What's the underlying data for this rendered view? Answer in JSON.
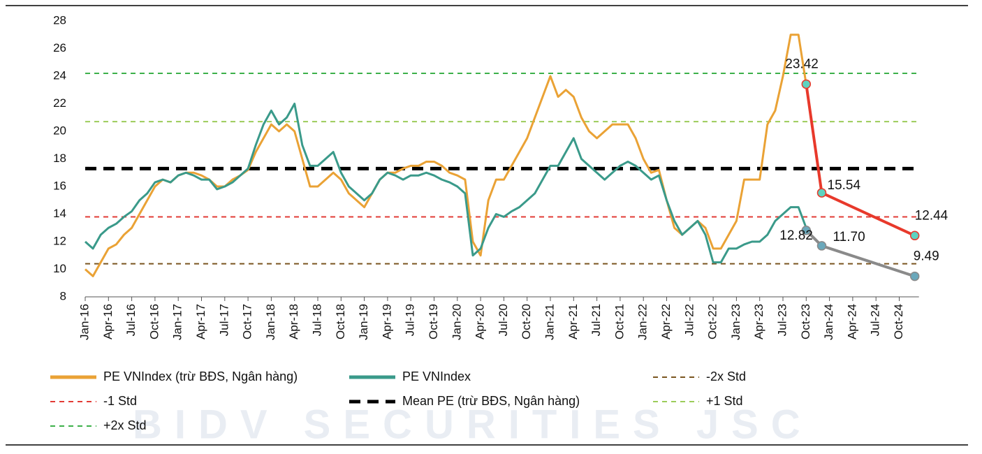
{
  "chart_data": {
    "type": "line",
    "watermark": "BIDV SECURITIES JSC",
    "categories": [
      "Jan-16",
      null,
      null,
      "Apr-16",
      null,
      null,
      "Jul-16",
      null,
      null,
      "Oct-16",
      null,
      null,
      "Jan-17",
      null,
      null,
      "Apr-17",
      null,
      null,
      "Jul-17",
      null,
      null,
      "Oct-17",
      null,
      null,
      "Jan-18",
      null,
      null,
      "Apr-18",
      null,
      null,
      "Jul-18",
      null,
      null,
      "Oct-18",
      null,
      null,
      "Jan-19",
      null,
      null,
      "Apr-19",
      null,
      null,
      "Jul-19",
      null,
      null,
      "Oct-19",
      null,
      null,
      "Jan-20",
      null,
      null,
      "Apr-20",
      null,
      null,
      "Jul-20",
      null,
      null,
      "Oct-20",
      null,
      null,
      "Jan-21",
      null,
      null,
      "Apr-21",
      null,
      null,
      "Jul-21",
      null,
      null,
      "Oct-21",
      null,
      null,
      "Jan-22",
      null,
      null,
      "Apr-22",
      null,
      null,
      "Jul-22",
      null,
      null,
      "Oct-22",
      null,
      null,
      "Jan-23",
      null,
      null,
      "Apr-23",
      null,
      null,
      "Jul-23",
      null,
      null,
      "Oct-23",
      null,
      null,
      "Jan-24",
      null,
      null,
      "Apr-24",
      null,
      null,
      "Jul-24",
      null,
      null,
      "Oct-24",
      null,
      null
    ],
    "ylim": [
      8,
      28
    ],
    "yticks": [
      8,
      10,
      12,
      14,
      16,
      18,
      20,
      22,
      24,
      26,
      28
    ],
    "series": [
      {
        "name": "PE VNIndex (trừ BĐS, Ngân hàng)",
        "color": "#eaa235",
        "values": [
          10,
          9.5,
          10.5,
          11.5,
          11.8,
          12.5,
          13,
          14,
          15,
          16,
          16.5,
          16.3,
          16.8,
          17,
          17,
          16.8,
          16.5,
          16,
          16,
          16.5,
          16.8,
          17.2,
          18.5,
          19.5,
          20.5,
          20,
          20.5,
          20,
          18,
          16,
          16,
          16.5,
          17,
          16.5,
          15.5,
          15,
          14.5,
          15.5,
          16.5,
          17,
          17,
          17.3,
          17.5,
          17.5,
          17.8,
          17.8,
          17.5,
          17,
          16.8,
          16.5,
          12,
          11,
          15,
          16.5,
          16.5,
          17.5,
          18.5,
          19.5,
          21,
          22.5,
          24,
          22.5,
          23,
          22.5,
          21,
          20,
          19.5,
          20,
          20.5,
          20.5,
          20.5,
          19.5,
          18,
          17,
          17.2,
          15,
          13,
          12.5,
          13,
          13.5,
          13,
          11.5,
          11.5,
          12.5,
          13.5,
          16.5,
          16.5,
          16.5,
          20.5,
          21.5,
          24,
          27,
          27,
          23.4,
          null,
          null,
          null,
          null,
          null,
          null,
          null,
          null,
          null,
          null,
          null,
          null,
          null,
          null
        ]
      },
      {
        "name": "PE VNIndex",
        "color": "#3a9a8a",
        "values": [
          12,
          11.5,
          12.5,
          13,
          13.3,
          13.8,
          14.2,
          15,
          15.5,
          16.3,
          16.5,
          16.3,
          16.8,
          17,
          16.8,
          16.5,
          16.5,
          15.8,
          16,
          16.3,
          16.8,
          17.3,
          19,
          20.5,
          21.5,
          20.5,
          21,
          22,
          19,
          17.5,
          17.5,
          18,
          18.5,
          17,
          16,
          15.5,
          15,
          15.5,
          16.5,
          17,
          16.8,
          16.5,
          16.8,
          16.8,
          17,
          16.8,
          16.5,
          16.3,
          16,
          15.5,
          11,
          11.5,
          13,
          14,
          13.8,
          14.2,
          14.5,
          15,
          15.5,
          16.5,
          17.5,
          17.5,
          18.5,
          19.5,
          18,
          17.5,
          17,
          16.5,
          17,
          17.5,
          17.8,
          17.5,
          17,
          16.5,
          16.8,
          15,
          13.5,
          12.5,
          13,
          13.5,
          12.5,
          10.5,
          10.5,
          11.5,
          11.5,
          11.8,
          12,
          12,
          12.5,
          13.5,
          14,
          14.5,
          14.5,
          13,
          null,
          null,
          null,
          null,
          null,
          null,
          null,
          null,
          null,
          null,
          null,
          null,
          null,
          null
        ]
      }
    ],
    "forecasts": [
      {
        "color": "#e8392b",
        "marker_color": "#5fd3c0",
        "values": [
          null,
          null,
          null,
          null,
          null,
          null,
          null,
          null,
          null,
          null,
          null,
          null,
          null,
          null,
          null,
          null,
          null,
          null,
          null,
          null,
          null,
          null,
          null,
          null,
          null,
          null,
          null,
          null,
          null,
          null,
          null,
          null,
          null,
          null,
          null,
          null,
          null,
          null,
          null,
          null,
          null,
          null,
          null,
          null,
          null,
          null,
          null,
          null,
          null,
          null,
          null,
          null,
          null,
          null,
          null,
          null,
          null,
          null,
          null,
          null,
          null,
          null,
          null,
          null,
          null,
          null,
          null,
          null,
          null,
          null,
          null,
          null,
          null,
          null,
          null,
          null,
          null,
          null,
          null,
          null,
          null,
          null,
          null,
          null,
          null,
          null,
          null,
          null,
          null,
          null,
          null,
          null,
          null,
          23.42,
          null,
          15.54,
          null,
          null,
          null,
          null,
          null,
          null,
          null,
          null,
          null,
          null,
          null,
          12.44
        ]
      },
      {
        "color": "#8a8a8a",
        "marker_color": "#6aa8bb",
        "values": [
          null,
          null,
          null,
          null,
          null,
          null,
          null,
          null,
          null,
          null,
          null,
          null,
          null,
          null,
          null,
          null,
          null,
          null,
          null,
          null,
          null,
          null,
          null,
          null,
          null,
          null,
          null,
          null,
          null,
          null,
          null,
          null,
          null,
          null,
          null,
          null,
          null,
          null,
          null,
          null,
          null,
          null,
          null,
          null,
          null,
          null,
          null,
          null,
          null,
          null,
          null,
          null,
          null,
          null,
          null,
          null,
          null,
          null,
          null,
          null,
          null,
          null,
          null,
          null,
          null,
          null,
          null,
          null,
          null,
          null,
          null,
          null,
          null,
          null,
          null,
          null,
          null,
          null,
          null,
          null,
          null,
          null,
          null,
          null,
          null,
          null,
          null,
          null,
          null,
          null,
          null,
          null,
          null,
          12.82,
          null,
          11.7,
          null,
          null,
          null,
          null,
          null,
          null,
          null,
          null,
          null,
          null,
          null,
          9.49
        ],
        "value_labels": [
          null,
          null,
          null,
          null,
          null,
          null,
          null,
          null,
          null,
          null,
          null,
          null,
          null,
          null,
          null,
          null,
          null,
          null,
          null,
          null,
          null,
          null,
          null,
          null,
          null,
          null,
          null,
          null,
          null,
          null,
          null,
          null,
          null,
          null,
          null,
          null,
          null,
          null,
          null,
          null,
          null,
          null,
          null,
          null,
          null,
          null,
          null,
          null,
          null,
          null,
          null,
          null,
          null,
          null,
          null,
          null,
          null,
          null,
          null,
          null,
          null,
          null,
          null,
          null,
          null,
          null,
          null,
          null,
          null,
          null,
          null,
          null,
          null,
          null,
          null,
          null,
          null,
          null,
          null,
          null,
          null,
          null,
          null,
          null,
          null,
          null,
          null,
          null,
          null,
          null,
          null,
          null,
          null,
          "12.82",
          null,
          "11.70",
          null,
          null,
          null,
          null,
          null,
          null,
          null,
          null,
          null,
          null,
          null,
          "9.49"
        ]
      }
    ],
    "reference_lines": [
      {
        "name": "-2x Std",
        "color": "#7a5520",
        "value": 10.4,
        "width": 2,
        "dash": "7,6"
      },
      {
        "name": "-1 Std",
        "color": "#e23b35",
        "value": 13.8,
        "width": 2,
        "dash": "7,6"
      },
      {
        "name": "Mean PE (trừ BĐS, Ngân hàng)",
        "color": "#000000",
        "value": 17.3,
        "width": 5,
        "dash": "16,10"
      },
      {
        "name": "+1 Std",
        "color": "#9ccc5a",
        "value": 20.7,
        "width": 2,
        "dash": "7,6"
      },
      {
        "name": "+2x Std",
        "color": "#3cb04a",
        "value": 24.2,
        "width": 2,
        "dash": "7,6"
      }
    ]
  }
}
